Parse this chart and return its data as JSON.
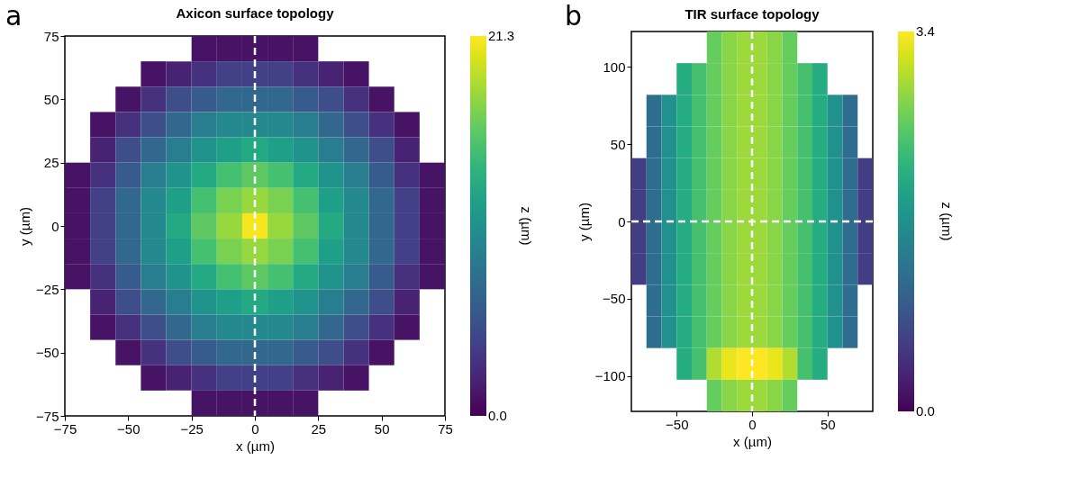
{
  "chart_data": [
    {
      "type": "heatmap",
      "title": "Axicon surface topology",
      "xlabel": "x (µm)",
      "ylabel": "y (µm)",
      "clabel": "z (µm)",
      "annotations": [
        "a"
      ],
      "x": [
        -70,
        -60,
        -50,
        -40,
        -30,
        -20,
        -10,
        0,
        10,
        20,
        30,
        40,
        50,
        60,
        70
      ],
      "cells": [
        [
          null,
          null,
          null,
          null,
          null,
          1,
          1,
          1,
          1,
          1,
          null,
          null,
          null,
          null,
          null
        ],
        [
          null,
          null,
          null,
          1,
          2,
          3,
          4,
          4,
          4,
          3,
          2,
          1,
          null,
          null,
          null
        ],
        [
          null,
          null,
          1,
          3,
          5,
          6,
          7,
          7,
          7,
          6,
          5,
          3,
          1,
          null,
          null
        ],
        [
          null,
          1,
          3,
          5,
          7,
          9,
          10,
          10,
          10,
          9,
          7,
          5,
          3,
          1,
          null
        ],
        [
          null,
          2,
          5,
          7,
          9,
          11,
          12,
          13,
          12,
          11,
          9,
          7,
          5,
          2,
          null
        ],
        [
          1,
          3,
          6,
          9,
          11,
          13,
          15,
          16,
          15,
          13,
          11,
          9,
          6,
          3,
          1
        ],
        [
          1,
          4,
          7,
          10,
          12,
          15,
          17,
          18,
          17,
          15,
          12,
          10,
          7,
          4,
          1
        ],
        [
          1,
          4,
          7,
          10,
          13,
          16,
          18,
          21,
          18,
          16,
          13,
          10,
          7,
          4,
          1
        ],
        [
          1,
          4,
          7,
          10,
          12,
          15,
          17,
          18,
          17,
          15,
          12,
          10,
          7,
          4,
          1
        ],
        [
          1,
          3,
          6,
          9,
          11,
          13,
          15,
          16,
          15,
          13,
          11,
          9,
          6,
          3,
          1
        ],
        [
          null,
          2,
          5,
          7,
          9,
          11,
          12,
          13,
          12,
          11,
          9,
          7,
          5,
          2,
          null
        ],
        [
          null,
          1,
          3,
          5,
          7,
          9,
          10,
          10,
          10,
          9,
          7,
          5,
          3,
          1,
          null
        ],
        [
          null,
          null,
          1,
          3,
          5,
          6,
          7,
          7,
          7,
          6,
          5,
          3,
          1,
          null,
          null
        ],
        [
          null,
          null,
          null,
          1,
          2,
          3,
          4,
          4,
          4,
          3,
          2,
          1,
          null,
          null,
          null
        ],
        [
          null,
          null,
          null,
          null,
          null,
          1,
          1,
          1,
          1,
          1,
          null,
          null,
          null,
          null,
          null
        ]
      ],
      "xlim": [
        -75,
        75
      ],
      "ylim": [
        -75,
        75
      ],
      "xticks": [
        -75,
        -50,
        -25,
        0,
        25,
        50,
        75
      ],
      "yticks": [
        -75,
        -50,
        -25,
        0,
        25,
        50,
        75
      ],
      "clim": [
        0,
        21.3
      ],
      "cticks": [
        {
          "value": 0,
          "label": "0.0"
        },
        21.3
      ],
      "ref_lines": [
        {
          "axis": "x",
          "value": 0,
          "color": "#ffffff",
          "line_style": "dashed"
        }
      ]
    },
    {
      "type": "heatmap",
      "title": "TIR surface topology",
      "xlabel": "x (µm)",
      "ylabel": "y (µm)",
      "clabel": "z (µm)",
      "annotations": [
        "b"
      ],
      "x": [
        -75,
        -65,
        -55,
        -45,
        -35,
        -25,
        -15,
        -5,
        5,
        15,
        25,
        35,
        45,
        55,
        65,
        75
      ],
      "cells": [
        [
          null,
          null,
          null,
          null,
          null,
          2.6,
          2.8,
          2.9,
          2.9,
          2.8,
          2.6,
          null,
          null,
          null,
          null,
          null
        ],
        [
          null,
          null,
          null,
          2.1,
          2.4,
          2.6,
          2.8,
          2.9,
          2.9,
          2.8,
          2.6,
          2.4,
          2.1,
          null,
          null,
          null
        ],
        [
          null,
          1.2,
          1.7,
          2.1,
          2.4,
          2.6,
          2.8,
          2.9,
          2.9,
          2.8,
          2.6,
          2.4,
          2.1,
          1.7,
          1.2,
          null
        ],
        [
          null,
          1.2,
          1.7,
          2.1,
          2.4,
          2.6,
          2.8,
          2.9,
          2.9,
          2.8,
          2.6,
          2.4,
          2.1,
          1.7,
          1.2,
          null
        ],
        [
          0.6,
          1.2,
          1.7,
          2.1,
          2.4,
          2.6,
          2.8,
          2.9,
          2.9,
          2.8,
          2.6,
          2.4,
          2.1,
          1.7,
          1.2,
          0.6
        ],
        [
          0.6,
          1.2,
          1.7,
          2.1,
          2.4,
          2.6,
          2.8,
          2.9,
          2.9,
          2.8,
          2.6,
          2.4,
          2.1,
          1.7,
          1.2,
          0.6
        ],
        [
          0.6,
          1.2,
          1.7,
          2.1,
          2.4,
          2.6,
          2.8,
          2.9,
          2.9,
          2.8,
          2.6,
          2.4,
          2.1,
          1.7,
          1.2,
          0.6
        ],
        [
          0.6,
          1.2,
          1.7,
          2.1,
          2.4,
          2.6,
          2.8,
          2.9,
          2.9,
          2.8,
          2.6,
          2.4,
          2.1,
          1.7,
          1.2,
          0.6
        ],
        [
          null,
          1.2,
          1.7,
          2.1,
          2.4,
          2.6,
          2.8,
          2.9,
          2.9,
          2.8,
          2.6,
          2.4,
          2.1,
          1.7,
          1.2,
          null
        ],
        [
          null,
          1.2,
          1.7,
          2.1,
          2.4,
          2.6,
          2.8,
          2.9,
          2.9,
          2.8,
          2.6,
          2.4,
          2.1,
          1.7,
          1.2,
          null
        ],
        [
          null,
          null,
          null,
          2.1,
          2.4,
          3.0,
          3.3,
          3.4,
          3.4,
          3.3,
          3.0,
          2.4,
          2.1,
          null,
          null,
          null
        ],
        [
          null,
          null,
          null,
          null,
          null,
          2.6,
          2.8,
          2.9,
          2.9,
          2.8,
          2.6,
          null,
          null,
          null,
          null,
          null
        ]
      ],
      "xlim": [
        -80,
        80
      ],
      "ylim": [
        -123,
        123
      ],
      "xticks": [
        -50,
        0,
        50
      ],
      "yticks": [
        -100,
        -50,
        0,
        50,
        100
      ],
      "clim": [
        0,
        3.4
      ],
      "cticks": [
        {
          "value": 0,
          "label": "0.0"
        },
        3.4
      ],
      "ref_lines": [
        {
          "axis": "x",
          "value": 0,
          "color": "#ffffff",
          "line_style": "dashed"
        },
        {
          "axis": "y",
          "value": 0,
          "color": "#ffffff",
          "line_style": "dashed"
        }
      ]
    }
  ]
}
